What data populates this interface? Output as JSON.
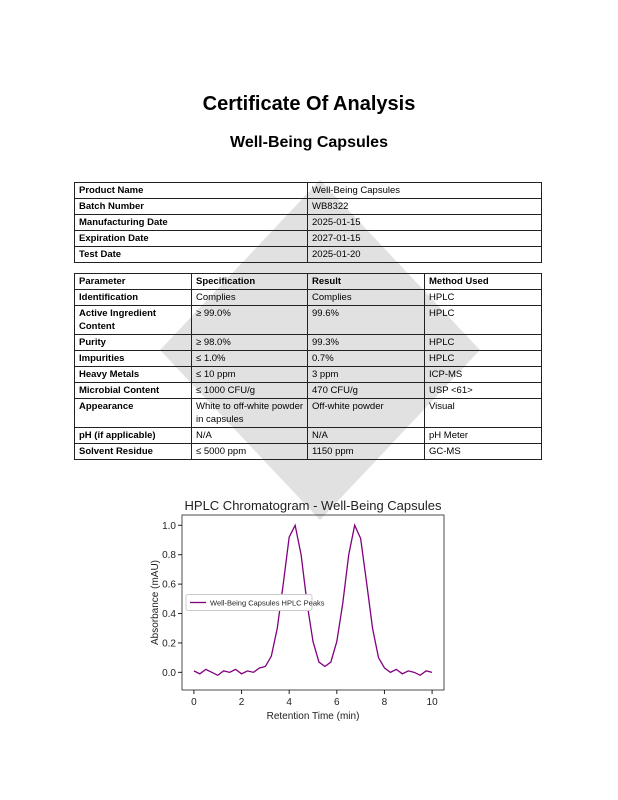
{
  "header": {
    "title": "Certificate Of Analysis",
    "subtitle": "Well-Being Capsules"
  },
  "info_table": {
    "rows": [
      [
        "Product Name",
        "Well-Being Capsules"
      ],
      [
        "Batch Number",
        "WB8322"
      ],
      [
        "Manufacturing Date",
        "2025-01-15"
      ],
      [
        "Expiration Date",
        "2027-01-15"
      ],
      [
        "Test Date",
        "2025-01-20"
      ]
    ]
  },
  "results_table": {
    "header": [
      "Parameter",
      "Specification",
      "Result",
      "Method Used"
    ],
    "rows": [
      [
        "Identification",
        "Complies",
        "Complies",
        "HPLC"
      ],
      [
        "Active Ingredient Content",
        "≥ 99.0%",
        "99.6%",
        "HPLC"
      ],
      [
        "Purity",
        "≥ 98.0%",
        "99.3%",
        "HPLC"
      ],
      [
        "Impurities",
        "≤ 1.0%",
        "0.7%",
        "HPLC"
      ],
      [
        "Heavy Metals",
        "≤ 10 ppm",
        "3 ppm",
        "ICP-MS"
      ],
      [
        "Microbial Content",
        "≤ 1000 CFU/g",
        "470 CFU/g",
        "USP <61>"
      ],
      [
        "Appearance",
        "White to off-white powder in capsules",
        "Off-white powder",
        "Visual"
      ],
      [
        "pH (if applicable)",
        "N/A",
        "N/A",
        "pH Meter"
      ],
      [
        "Solvent Residue",
        "≤ 5000 ppm",
        "1150 ppm",
        "GC-MS"
      ]
    ]
  },
  "chart_data": {
    "type": "line",
    "title": "HPLC Chromatogram - Well-Being Capsules",
    "x_label": "Retention Time (min)",
    "y_label": "Absorbance (mAU)",
    "x": [
      0,
      0.25,
      0.5,
      0.75,
      1,
      1.25,
      1.5,
      1.75,
      2,
      2.25,
      2.5,
      2.75,
      3,
      3.25,
      3.5,
      3.75,
      4,
      4.25,
      4.5,
      4.75,
      5,
      5.25,
      5.5,
      5.75,
      6,
      6.25,
      6.5,
      6.75,
      7,
      7.25,
      7.5,
      7.75,
      8,
      8.25,
      8.5,
      8.75,
      9,
      9.25,
      9.5,
      9.75,
      10
    ],
    "series": [
      {
        "name": "Well-Being Capsules HPLC Peaks",
        "color": "#800080",
        "values": [
          0.01,
          -0.01,
          0.02,
          0.0,
          -0.02,
          0.01,
          0.0,
          0.02,
          -0.01,
          0.01,
          0.0,
          0.03,
          0.04,
          0.11,
          0.3,
          0.6,
          0.92,
          1.0,
          0.8,
          0.47,
          0.21,
          0.07,
          0.04,
          0.07,
          0.21,
          0.47,
          0.8,
          1.0,
          0.91,
          0.61,
          0.3,
          0.1,
          0.03,
          0.0,
          0.02,
          -0.01,
          0.01,
          0.0,
          -0.02,
          0.01,
          0.0
        ]
      }
    ],
    "xlim": [
      -0.5,
      10.5
    ],
    "ylim": [
      -0.12,
      1.07
    ],
    "xticks": [
      0,
      2,
      4,
      6,
      8,
      10
    ],
    "yticks": [
      {
        "value": 0,
        "label": "0.0"
      },
      {
        "value": 0.2,
        "label": "0.2"
      },
      {
        "value": 0.4,
        "label": "0.4"
      },
      {
        "value": 0.6,
        "label": "0.6"
      },
      {
        "value": 0.8,
        "label": "0.8"
      },
      {
        "value": 1,
        "label": "1.0"
      }
    ],
    "legend": "center left"
  }
}
